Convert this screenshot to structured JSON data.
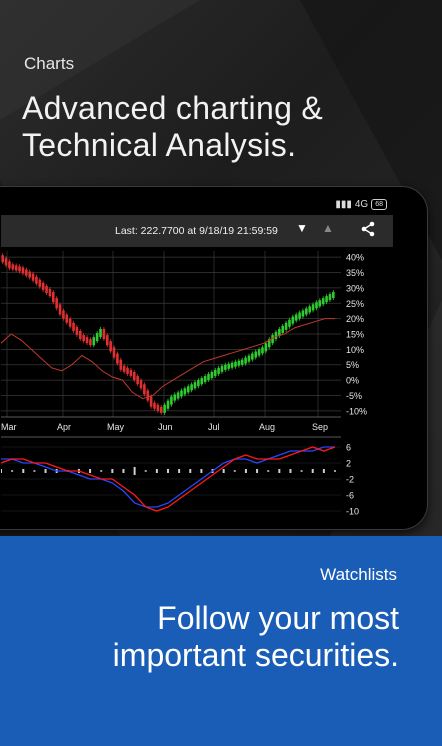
{
  "top_section": {
    "kicker": "Charts",
    "headline_line1": "Advanced charting &",
    "headline_line2": "Technical Analysis."
  },
  "device": {
    "status": {
      "network": "4G",
      "battery": "68"
    },
    "toolbar": {
      "last_quote": "Last: 222.7700 at 9/18/19 21:59:59",
      "icons": [
        "dropdown-triangle-icon",
        "collapse-triangle-icon",
        "share-icon"
      ]
    }
  },
  "chart_data": [
    {
      "type": "line",
      "title": "",
      "x_ticks": [
        "Mar",
        "Apr",
        "May",
        "Jun",
        "Jul",
        "Aug",
        "Sep"
      ],
      "y_ticks": [
        "40%",
        "35%",
        "30%",
        "25%",
        "20%",
        "15%",
        "10%",
        "5%",
        "0%",
        "-5%",
        "-10%"
      ],
      "ylim": [
        -12,
        42
      ],
      "grid": true,
      "series": [
        {
          "values": [
            40,
            37,
            36,
            34,
            31,
            28,
            22,
            18,
            14,
            12,
            16,
            10,
            4,
            2,
            -2,
            -8,
            -10,
            -6,
            -4,
            -2,
            0,
            2,
            4,
            5,
            6,
            8,
            10,
            14,
            17,
            20,
            22,
            24,
            26,
            28
          ],
          "color": "#29c229"
        },
        {
          "values": [
            12,
            15,
            13,
            10,
            7,
            4,
            3,
            5,
            8,
            6,
            3,
            1,
            0,
            -4,
            -6,
            -5,
            -2,
            0,
            2,
            4,
            6,
            7,
            8,
            9,
            10,
            11,
            12,
            14,
            15,
            17,
            18,
            19,
            20,
            20
          ],
          "color": "#c0392b"
        }
      ]
    },
    {
      "type": "line",
      "title": "",
      "y_ticks": [
        "6",
        "2",
        "-2",
        "-6",
        "-10"
      ],
      "ylim": [
        -11,
        7
      ],
      "series": [
        {
          "values": [
            3,
            3,
            2,
            2,
            1,
            0,
            0,
            -1,
            -2,
            -2,
            -3,
            -5,
            -8,
            -9,
            -9,
            -8,
            -6,
            -4,
            -2,
            0,
            2,
            3,
            3,
            2,
            3,
            4,
            5,
            5,
            5,
            6,
            6
          ],
          "color": "#2a45ff"
        },
        {
          "values": [
            2,
            3,
            3,
            2,
            2,
            1,
            0,
            0,
            -1,
            -2,
            -2,
            -4,
            -6,
            -9,
            -10,
            -9,
            -7,
            -5,
            -3,
            -1,
            1,
            3,
            4,
            3,
            3,
            3,
            4,
            5,
            6,
            5,
            6
          ],
          "color": "#ff1a1a"
        }
      ]
    }
  ],
  "bottom_section": {
    "kicker": "Watchlists",
    "headline_line1": "Follow your most",
    "headline_line2": "important securities."
  }
}
